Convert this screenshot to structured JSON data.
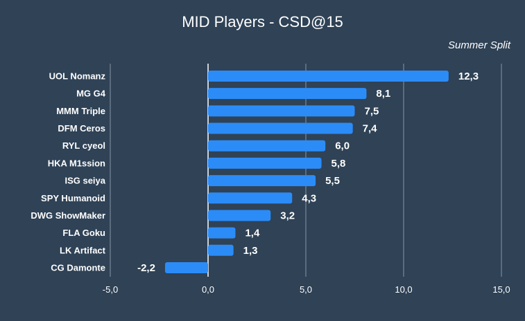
{
  "chart_data": {
    "type": "bar",
    "orientation": "horizontal",
    "title": "MID Players - CSD@15",
    "subtitle": "Summer Split",
    "xlabel": "",
    "ylabel": "",
    "categories": [
      "UOL Nomanz",
      "MG G4",
      "MMM Triple",
      "DFM Ceros",
      "RYL cyeol",
      "HKA M1ssion",
      "ISG seiya",
      "SPY Humanoid",
      "DWG ShowMaker",
      "FLA Goku",
      "LK Artifact",
      "CG Damonte"
    ],
    "values": [
      12.3,
      8.1,
      7.5,
      7.4,
      6.0,
      5.8,
      5.5,
      4.3,
      3.2,
      1.4,
      1.3,
      -2.2
    ],
    "value_labels": [
      "12,3",
      "8,1",
      "7,5",
      "7,4",
      "6,0",
      "5,8",
      "5,5",
      "4,3",
      "3,2",
      "1,4",
      "1,3",
      "-2,2"
    ],
    "xlim": [
      -5,
      15
    ],
    "xticks": [
      -5,
      0,
      5,
      10,
      15
    ],
    "xtick_labels": [
      "-5,0",
      "0,0",
      "5,0",
      "10,0",
      "15,0"
    ],
    "grid": true,
    "legend": "none",
    "colors": {
      "background": "#2f4256",
      "bar": "#2b8cf7",
      "grid": "#8695a6",
      "zero_line": "#ffffff",
      "text": "#ffffff"
    }
  }
}
